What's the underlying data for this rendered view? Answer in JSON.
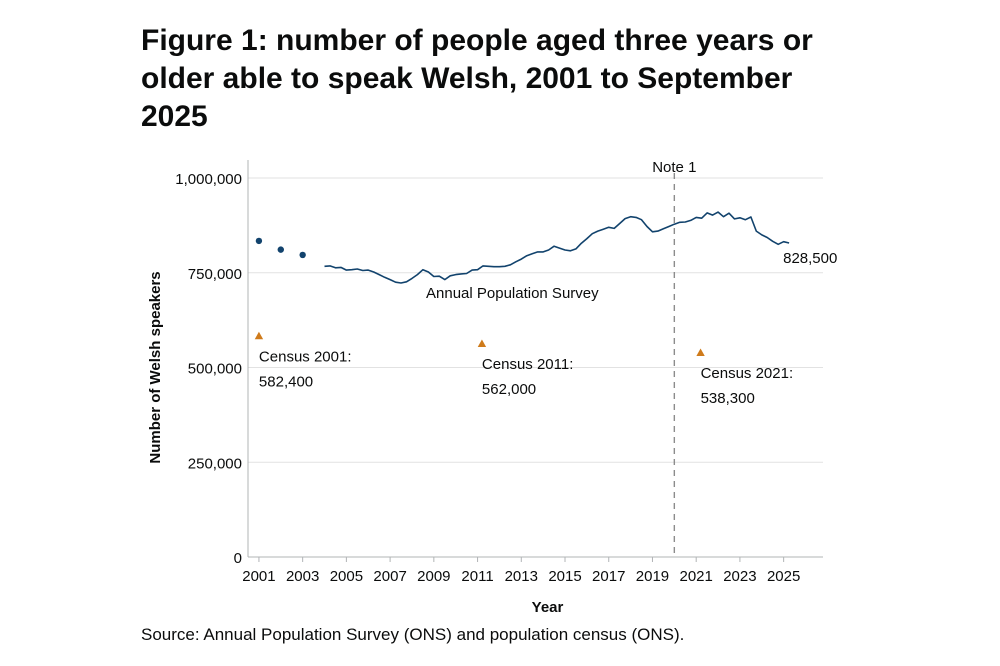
{
  "figure": {
    "title": "Figure 1: number of people aged three years or older able to speak Welsh, 2001 to September 2025",
    "source": "Source: Annual Population Survey (ONS) and population census (ONS)."
  },
  "chart_data": {
    "type": "line",
    "title": "Figure 1: number of people aged three years or older able to speak Welsh, 2001 to September 2025",
    "xlabel": "Year",
    "ylabel": "Number of Welsh speakers",
    "xlim": [
      2000.5,
      2026.8
    ],
    "ylim": [
      0,
      1000000
    ],
    "x_ticks": [
      2001,
      2003,
      2005,
      2007,
      2009,
      2011,
      2013,
      2015,
      2017,
      2019,
      2021,
      2023,
      2025
    ],
    "y_ticks": [
      0,
      250000,
      500000,
      750000,
      1000000
    ],
    "y_tick_labels": [
      "0",
      "250,000",
      "500,000",
      "750,000",
      "1,000,000"
    ],
    "grid": true,
    "series": [
      {
        "name": "Annual Population Survey",
        "color": "#12436d",
        "points": [
          {
            "x": 2001.0,
            "y": 834000
          },
          {
            "x": 2002.0,
            "y": 811000
          },
          {
            "x": 2003.0,
            "y": 797000
          }
        ],
        "line": [
          [
            2004.0,
            767000
          ],
          [
            2004.25,
            768000
          ],
          [
            2004.5,
            763000
          ],
          [
            2004.75,
            764000
          ],
          [
            2005.0,
            757000
          ],
          [
            2005.25,
            758000
          ],
          [
            2005.5,
            760000
          ],
          [
            2005.75,
            756000
          ],
          [
            2006.0,
            757000
          ],
          [
            2006.25,
            752000
          ],
          [
            2006.5,
            745000
          ],
          [
            2006.75,
            738000
          ],
          [
            2007.0,
            732000
          ],
          [
            2007.25,
            725000
          ],
          [
            2007.5,
            723000
          ],
          [
            2007.75,
            726000
          ],
          [
            2008.0,
            735000
          ],
          [
            2008.25,
            745000
          ],
          [
            2008.5,
            758000
          ],
          [
            2008.75,
            752000
          ],
          [
            2009.0,
            740000
          ],
          [
            2009.25,
            741000
          ],
          [
            2009.5,
            732000
          ],
          [
            2009.75,
            742000
          ],
          [
            2010.0,
            745000
          ],
          [
            2010.25,
            747000
          ],
          [
            2010.5,
            748000
          ],
          [
            2010.75,
            757000
          ],
          [
            2011.0,
            758000
          ],
          [
            2011.25,
            768000
          ],
          [
            2011.5,
            767000
          ],
          [
            2011.75,
            766000
          ],
          [
            2012.0,
            766000
          ],
          [
            2012.25,
            767000
          ],
          [
            2012.5,
            771000
          ],
          [
            2012.75,
            779000
          ],
          [
            2013.0,
            786000
          ],
          [
            2013.25,
            795000
          ],
          [
            2013.5,
            800000
          ],
          [
            2013.75,
            805000
          ],
          [
            2014.0,
            805000
          ],
          [
            2014.25,
            810000
          ],
          [
            2014.5,
            820000
          ],
          [
            2014.75,
            815000
          ],
          [
            2015.0,
            810000
          ],
          [
            2015.25,
            808000
          ],
          [
            2015.5,
            813000
          ],
          [
            2015.75,
            828000
          ],
          [
            2016.0,
            840000
          ],
          [
            2016.25,
            853000
          ],
          [
            2016.5,
            860000
          ],
          [
            2016.75,
            865000
          ],
          [
            2017.0,
            870000
          ],
          [
            2017.25,
            867000
          ],
          [
            2017.5,
            880000
          ],
          [
            2017.75,
            893000
          ],
          [
            2018.0,
            898000
          ],
          [
            2018.25,
            896000
          ],
          [
            2018.5,
            890000
          ],
          [
            2018.75,
            872000
          ],
          [
            2019.0,
            858000
          ],
          [
            2019.25,
            860000
          ],
          [
            2019.5,
            866000
          ],
          [
            2019.75,
            872000
          ],
          [
            2020.0,
            878000
          ],
          [
            2020.25,
            883000
          ],
          [
            2020.5,
            884000
          ],
          [
            2020.75,
            888000
          ],
          [
            2021.0,
            896000
          ],
          [
            2021.25,
            894000
          ],
          [
            2021.5,
            908000
          ],
          [
            2021.75,
            902000
          ],
          [
            2022.0,
            910000
          ],
          [
            2022.25,
            898000
          ],
          [
            2022.5,
            907000
          ],
          [
            2022.75,
            892000
          ],
          [
            2023.0,
            895000
          ],
          [
            2023.25,
            890000
          ],
          [
            2023.5,
            897000
          ],
          [
            2023.75,
            860000
          ],
          [
            2024.0,
            850000
          ],
          [
            2024.25,
            843000
          ],
          [
            2024.5,
            833000
          ],
          [
            2024.75,
            825000
          ],
          [
            2025.0,
            832000
          ],
          [
            2025.25,
            828500
          ]
        ],
        "line_label": "Annual Population Survey",
        "end_label": "828,500"
      },
      {
        "name": "Census",
        "color": "#cf7b1b",
        "marker": "triangle",
        "points": [
          {
            "x": 2001.0,
            "y": 582400,
            "label_line1": "Census 2001:",
            "label_line2": "582,400"
          },
          {
            "x": 2011.2,
            "y": 562000,
            "label_line1": "Census 2011:",
            "label_line2": "562,000"
          },
          {
            "x": 2021.2,
            "y": 538300,
            "label_line1": "Census 2021:",
            "label_line2": "538,300"
          }
        ]
      }
    ],
    "annotations": [
      {
        "type": "vline",
        "x": 2020.0,
        "label": "Note 1"
      }
    ]
  }
}
